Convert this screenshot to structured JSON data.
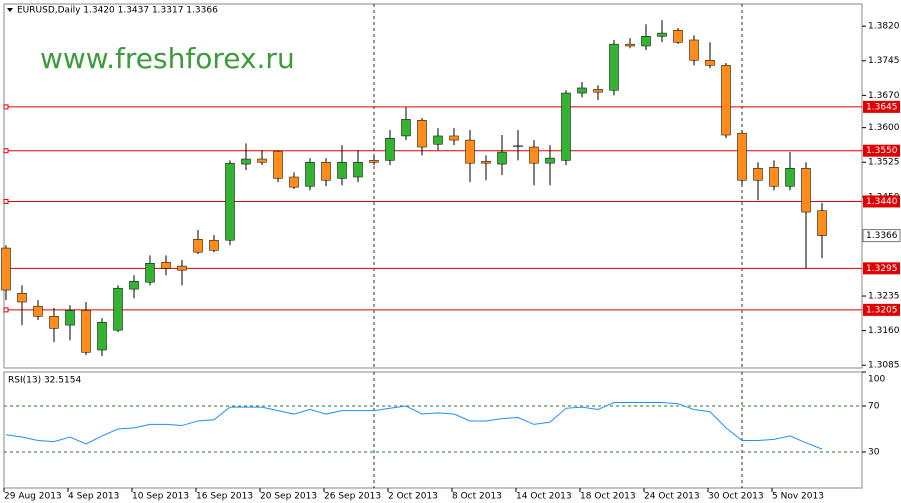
{
  "chart_data": [
    {
      "type": "candlestick",
      "title": "EURUSD,Daily  1.3420 1.3437 1.3317 1.3366",
      "watermark": "www.freshforex.ru",
      "categories": [
        "29 Aug 2013",
        null,
        null,
        null,
        "4 Sep 2013",
        null,
        null,
        null,
        "10 Sep 2013",
        null,
        null,
        null,
        "16 Sep 2013",
        null,
        null,
        null,
        "20 Sep 2013",
        null,
        null,
        null,
        "26 Sep 2013",
        null,
        null,
        null,
        "2 Oct 2013",
        null,
        null,
        null,
        "8 Oct 2013",
        null,
        null,
        null,
        "14 Oct 2013",
        null,
        null,
        null,
        "18 Oct 2013",
        null,
        null,
        null,
        "24 Oct 2013",
        null,
        null,
        null,
        "30 Oct 2013",
        null,
        null,
        null,
        "5 Nov 2013",
        null,
        null,
        null
      ],
      "open": [
        1.3339,
        1.3241,
        1.3213,
        1.3191,
        1.3172,
        1.3204,
        1.3118,
        1.3161,
        1.325,
        1.3265,
        1.3308,
        1.33,
        1.3358,
        1.3356,
        1.3356,
        1.3521,
        1.3532,
        1.3549,
        1.3493,
        1.3473,
        1.3525,
        1.349,
        1.3493,
        1.3529,
        1.3529,
        1.3582,
        1.3616,
        1.3564,
        1.3582,
        1.3573,
        1.3527,
        1.3521,
        1.356,
        1.3558,
        1.3523,
        1.3529,
        1.3675,
        1.3683,
        1.3681,
        1.3781,
        1.3777,
        1.3798,
        1.3811,
        1.379,
        1.3746,
        1.3735,
        1.3588,
        1.3512,
        1.3514,
        1.3473,
        1.3512,
        1.342
      ],
      "high": [
        1.3345,
        1.3258,
        1.3226,
        1.3209,
        1.3215,
        1.3222,
        1.3187,
        1.3258,
        1.328,
        1.3323,
        1.3323,
        1.3313,
        1.3378,
        1.3367,
        1.3529,
        1.3566,
        1.3551,
        1.3551,
        1.3503,
        1.3534,
        1.3534,
        1.3562,
        1.3551,
        1.354,
        1.3595,
        1.3644,
        1.3621,
        1.3599,
        1.3599,
        1.3595,
        1.354,
        1.3584,
        1.3595,
        1.3573,
        1.3562,
        1.3681,
        1.3699,
        1.3692,
        1.379,
        1.3794,
        1.3824,
        1.3833,
        1.3816,
        1.38,
        1.3785,
        1.374,
        1.3595,
        1.3525,
        1.3529,
        1.3547,
        1.3525,
        1.3437
      ],
      "low": [
        1.3226,
        1.3172,
        1.3183,
        1.3135,
        1.3139,
        1.3107,
        1.3105,
        1.3157,
        1.323,
        1.3258,
        1.328,
        1.3258,
        1.3326,
        1.333,
        1.3345,
        1.3508,
        1.3519,
        1.3482,
        1.3467,
        1.3464,
        1.3473,
        1.3475,
        1.3482,
        1.3519,
        1.3519,
        1.3573,
        1.354,
        1.3551,
        1.3562,
        1.3482,
        1.3486,
        1.3497,
        1.3529,
        1.3475,
        1.3475,
        1.3519,
        1.3666,
        1.366,
        1.367,
        1.3772,
        1.3768,
        1.3785,
        1.3781,
        1.3735,
        1.3729,
        1.3577,
        1.3475,
        1.3443,
        1.3464,
        1.3464,
        1.3295,
        1.3317
      ],
      "close": [
        1.3248,
        1.3222,
        1.3191,
        1.3165,
        1.3204,
        1.3113,
        1.3178,
        1.3252,
        1.3267,
        1.3306,
        1.3295,
        1.3291,
        1.333,
        1.3334,
        1.3523,
        1.3532,
        1.3525,
        1.349,
        1.3471,
        1.3525,
        1.3486,
        1.3525,
        1.3525,
        1.3525,
        1.3577,
        1.3618,
        1.3558,
        1.3582,
        1.3573,
        1.3523,
        1.3523,
        1.3547,
        1.356,
        1.3523,
        1.3534,
        1.3675,
        1.3686,
        1.3677,
        1.3781,
        1.3777,
        1.3798,
        1.3805,
        1.3785,
        1.3746,
        1.3735,
        1.3584,
        1.3486,
        1.3486,
        1.3473,
        1.3512,
        1.3417,
        1.3366
      ],
      "up_color": "#32b432",
      "down_color": "#ff8c1a",
      "level_color": "#e00000",
      "ylim": [
        1.3079,
        1.3868
      ],
      "yticks": [
        {
          "value": 1.382,
          "label": "1.3820"
        },
        {
          "value": 1.3745,
          "label": "1.3745"
        },
        {
          "value": 1.367,
          "label": "1.3670"
        },
        {
          "value": 1.36,
          "label": "1.3600"
        },
        {
          "value": 1.3525,
          "label": "1.3525"
        },
        {
          "value": 1.345,
          "label": "1.3450"
        },
        {
          "value": 1.3235,
          "label": "1.3235"
        },
        {
          "value": 1.316,
          "label": "1.3160"
        },
        {
          "value": 1.3085,
          "label": "1.3085"
        }
      ],
      "levels": [
        {
          "value": 1.3645,
          "label": "1.3645"
        },
        {
          "value": 1.355,
          "label": "1.3550"
        },
        {
          "value": 1.344,
          "label": "1.3440"
        },
        {
          "value": 1.3295,
          "label": "1.3295"
        },
        {
          "value": 1.3205,
          "label": "1.3205"
        }
      ],
      "last_price": {
        "value": 1.3366,
        "label": "1.3366"
      }
    },
    {
      "type": "line",
      "title": "RSI(13) 32.5154",
      "values": [
        45,
        43,
        40,
        39,
        43,
        37,
        44,
        50,
        51,
        54,
        54,
        53,
        57,
        58,
        69,
        69,
        69,
        66,
        63,
        67,
        63,
        66,
        66,
        66,
        68,
        70,
        63,
        64,
        63,
        57,
        57,
        59,
        60,
        54,
        56,
        68,
        69,
        67,
        73,
        73,
        73,
        73,
        72,
        67,
        65,
        51,
        40,
        40,
        41,
        44,
        38,
        32.5154
      ],
      "color": "#1e90ff",
      "ylim": [
        0,
        100
      ],
      "yticks": [
        30,
        70,
        100
      ],
      "levels": [
        30,
        70
      ]
    }
  ]
}
